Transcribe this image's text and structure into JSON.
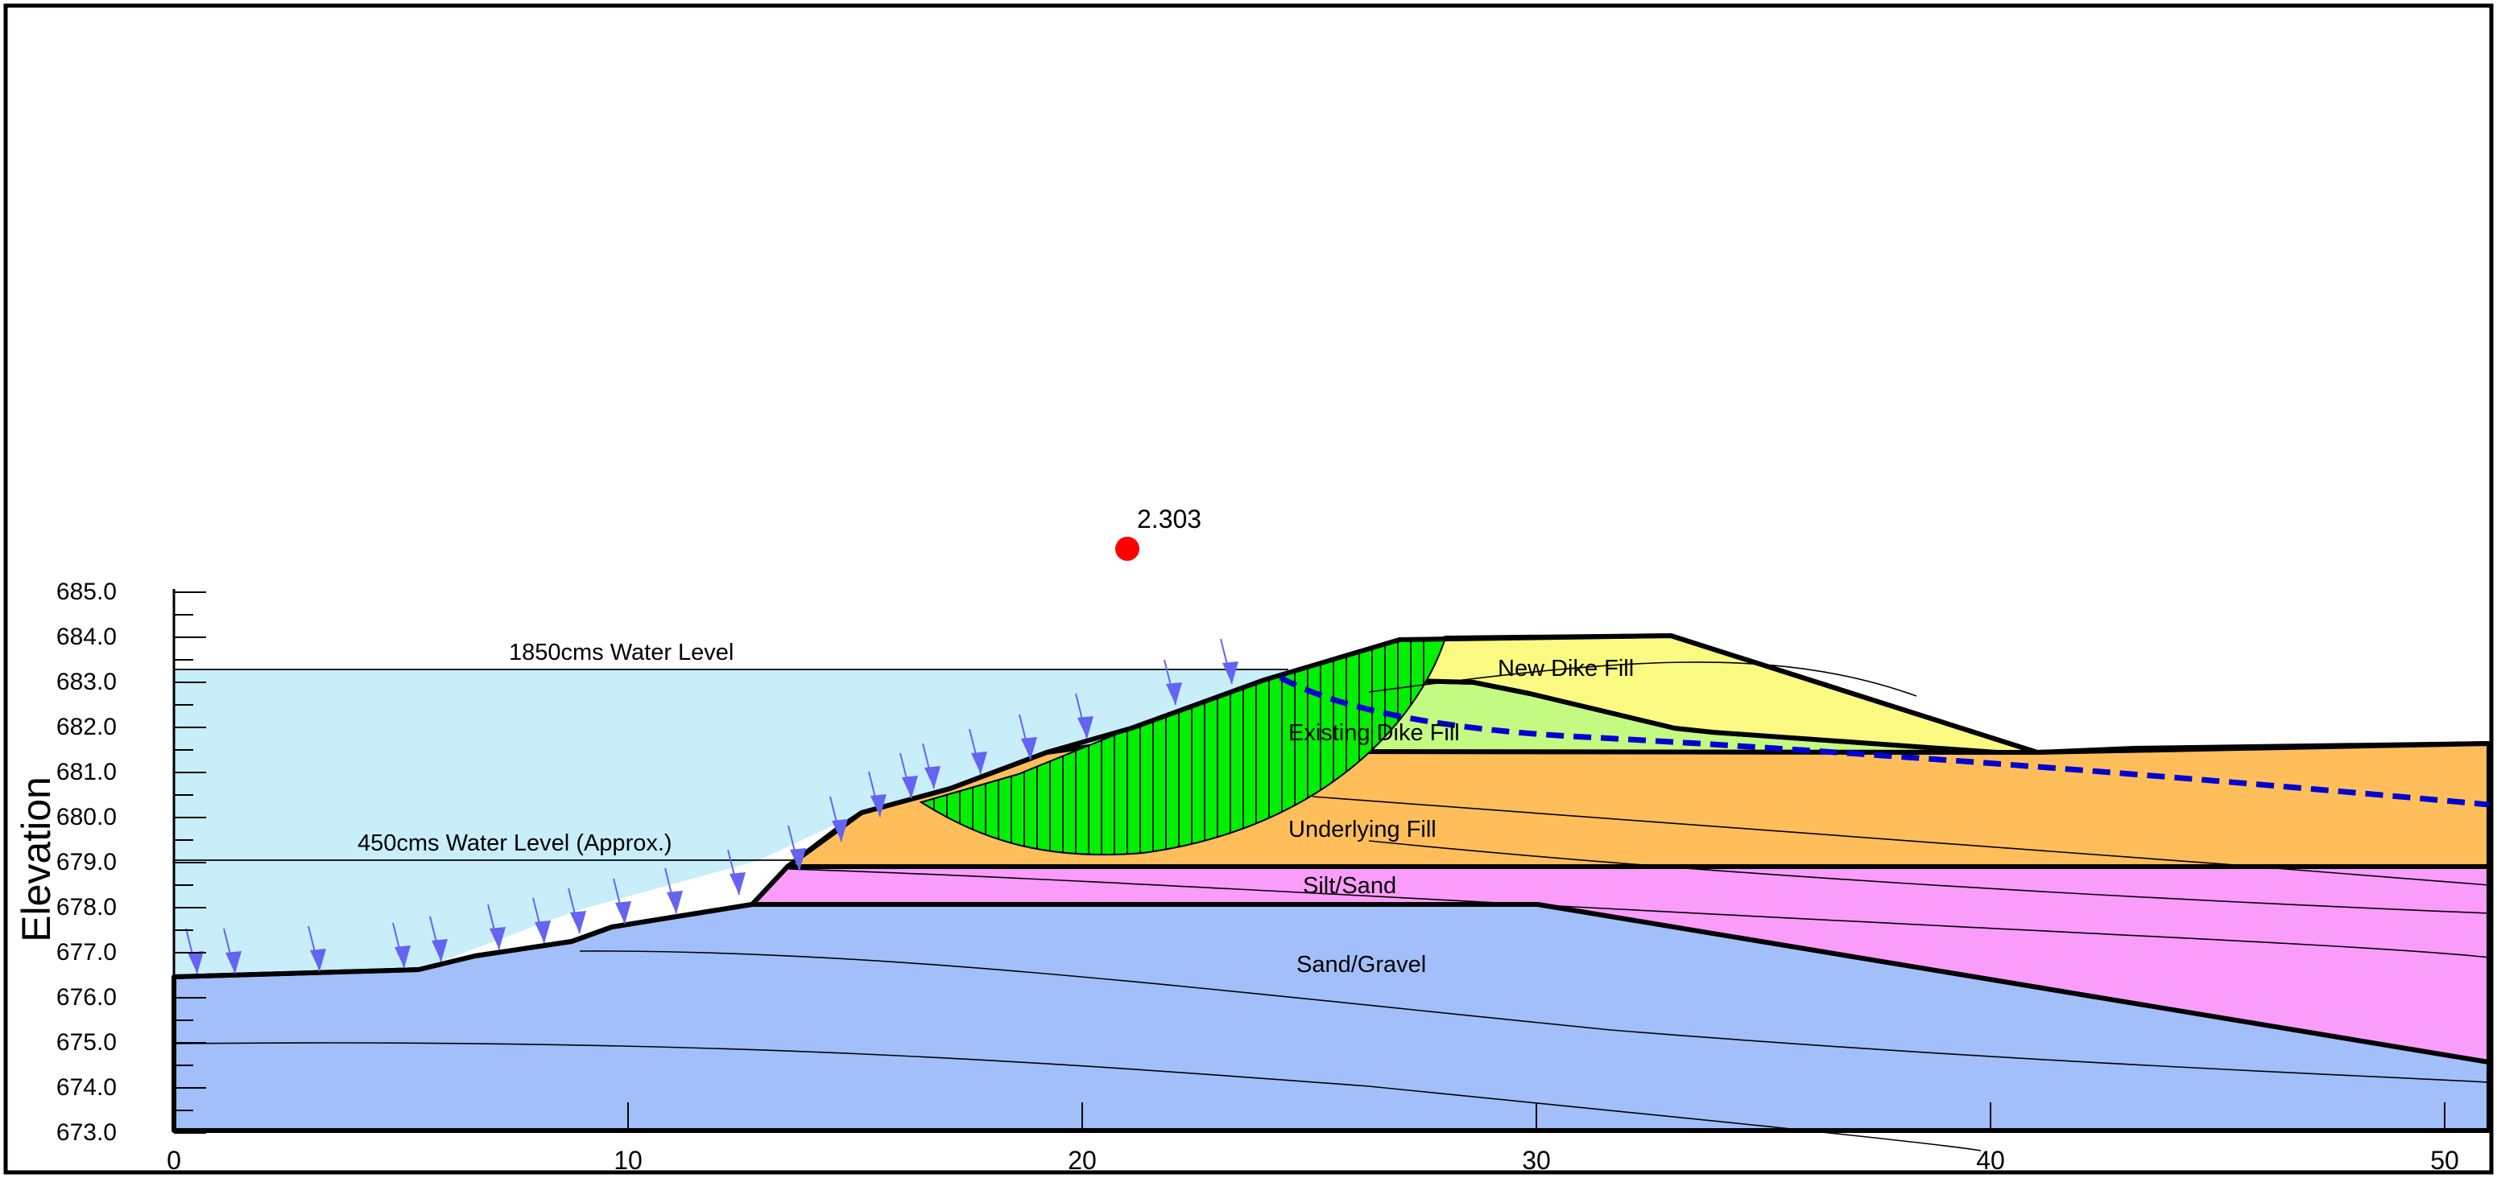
{
  "axes": {
    "y_label": "Elevation",
    "y_ticks": [
      "685.0",
      "684.0",
      "683.0",
      "682.0",
      "681.0",
      "680.0",
      "679.0",
      "678.0",
      "677.0",
      "676.0",
      "675.0",
      "674.0",
      "673.0"
    ],
    "x_ticks": [
      "0",
      "10",
      "20",
      "30",
      "40",
      "50"
    ]
  },
  "annotations": {
    "factor_of_safety": "2.303",
    "water_level_high": "1850cms Water Level",
    "water_level_low": "450cms Water Level (Approx.)"
  },
  "materials": {
    "new_dike_fill": "New Dike Fill",
    "existing_dike_fill": "Existing Dike Fill",
    "underlying_fill": "Underlying Fill",
    "silt_sand": "Silt/Sand",
    "sand_gravel": "Sand/Gravel"
  },
  "colors": {
    "water": "#c8eefa",
    "new_dike_fill": "#fafa82",
    "existing_dike_fill": "#c3fa82",
    "underlying_fill": "#ffbe5a",
    "silt_sand": "#fa9cfa",
    "sand_gravel": "#a2bffa",
    "slip_mass": "#00f000",
    "center_marker": "#ff0000",
    "phreatic_line": "#0000d2",
    "load_arrow": "#6464f0"
  }
}
